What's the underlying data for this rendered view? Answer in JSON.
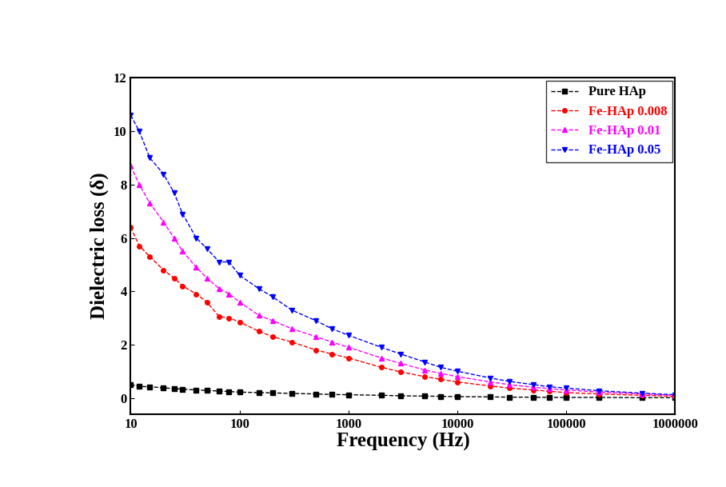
{
  "chart_data": {
    "type": "line",
    "x_label": "Frequency (Hz)",
    "y_label": "Dielectric loss (δ)",
    "log": "x",
    "x": [
      10,
      12,
      15,
      20,
      25,
      30,
      40,
      50,
      65,
      80,
      100,
      150,
      200,
      300,
      500,
      700,
      1000,
      2000,
      3000,
      5000,
      7000,
      10000,
      20000,
      30000,
      50000,
      70000,
      100000,
      200000,
      500000,
      1000000
    ],
    "series": [
      {
        "name": "Pure HAp",
        "color": "#000000",
        "marker": "square",
        "line_style": "dashed",
        "values": [
          0.5,
          0.43,
          0.42,
          0.38,
          0.35,
          0.33,
          0.3,
          0.28,
          0.26,
          0.24,
          0.22,
          0.2,
          0.19,
          0.17,
          0.15,
          0.13,
          0.12,
          0.1,
          0.08,
          0.07,
          0.06,
          0.05,
          0.04,
          0.03,
          0.03,
          0.02,
          0.02,
          0.02,
          0.01,
          0.01
        ]
      },
      {
        "name": "Fe-HAp 0.008",
        "color": "#ff0000",
        "marker": "circle",
        "line_style": "dashed",
        "values": [
          6.4,
          5.7,
          5.3,
          4.8,
          4.5,
          4.2,
          3.9,
          3.6,
          3.05,
          3.0,
          2.85,
          2.5,
          2.3,
          2.1,
          1.8,
          1.65,
          1.5,
          1.15,
          0.98,
          0.8,
          0.7,
          0.6,
          0.45,
          0.37,
          0.3,
          0.25,
          0.2,
          0.15,
          0.1,
          0.06
        ]
      },
      {
        "name": "Fe-HAp 0.01",
        "color": "#ff00ff",
        "marker": "triangle_up",
        "line_style": "dashed",
        "values": [
          8.7,
          8.0,
          7.3,
          6.6,
          6.0,
          5.5,
          4.9,
          4.5,
          4.1,
          3.9,
          3.6,
          3.1,
          2.9,
          2.6,
          2.3,
          2.1,
          1.9,
          1.5,
          1.3,
          1.05,
          0.92,
          0.8,
          0.6,
          0.5,
          0.4,
          0.35,
          0.3,
          0.22,
          0.15,
          0.1
        ]
      },
      {
        "name": "Fe-HAp 0.05",
        "color": "#0000ff",
        "marker": "triangle_down",
        "line_style": "dashed",
        "values": [
          10.6,
          10.0,
          9.0,
          8.4,
          7.7,
          6.9,
          6.0,
          5.6,
          5.1,
          5.1,
          4.6,
          4.1,
          3.8,
          3.3,
          2.9,
          2.6,
          2.35,
          1.9,
          1.65,
          1.35,
          1.15,
          1.0,
          0.75,
          0.62,
          0.5,
          0.42,
          0.37,
          0.27,
          0.18,
          0.12
        ]
      }
    ],
    "xlim": [
      10,
      1000000
    ],
    "xticks": [
      10,
      100,
      1000,
      10000,
      100000,
      1000000
    ],
    "ylim": [
      -0.6,
      12
    ],
    "yticks": [
      0,
      2,
      4,
      6,
      8,
      10,
      12
    ],
    "legend": "upper right",
    "grid": false
  }
}
